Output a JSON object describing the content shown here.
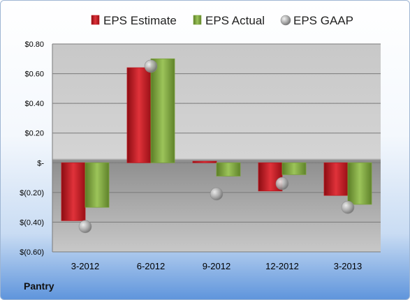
{
  "company": "Pantry",
  "colors": {
    "estimate": "#c0171f",
    "actual": "#7aa23a",
    "gaap": "#a7a7a7"
  },
  "chart_data": {
    "type": "bar",
    "categories": [
      "3-2012",
      "6-2012",
      "9-2012",
      "12-2012",
      "3-2013"
    ],
    "series": [
      {
        "name": "EPS Estimate",
        "kind": "bar",
        "values": [
          -0.39,
          0.64,
          0.01,
          -0.19,
          -0.22
        ]
      },
      {
        "name": "EPS Actual",
        "kind": "bar",
        "values": [
          -0.3,
          0.7,
          -0.09,
          -0.08,
          -0.28
        ]
      },
      {
        "name": "EPS GAAP",
        "kind": "scatter",
        "values": [
          -0.43,
          0.65,
          -0.21,
          -0.14,
          -0.3
        ]
      }
    ],
    "ylim": [
      -0.6,
      0.8
    ],
    "yticks": [
      0.8,
      0.6,
      0.4,
      0.2,
      0,
      -0.2,
      -0.4,
      -0.6
    ],
    "ytick_labels": [
      "$0.80",
      "$0.60",
      "$0.40",
      "$0.20",
      "$-",
      "$(0.20)",
      "$(0.40)",
      "$(0.60)"
    ],
    "legend_position": "top",
    "grid": true
  }
}
